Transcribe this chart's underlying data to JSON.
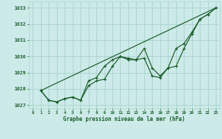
{
  "background_color": "#cceae8",
  "grid_color": "#aad4d0",
  "line_color": "#1a5c2a",
  "text_color": "#1a5c2a",
  "xlabel": "Graphe pression niveau de la mer (hPa)",
  "ylim": [
    1026.8,
    1033.4
  ],
  "xlim": [
    -0.5,
    23.5
  ],
  "yticks": [
    1027,
    1028,
    1029,
    1030,
    1031,
    1032,
    1033
  ],
  "xticks": [
    0,
    1,
    2,
    3,
    4,
    5,
    6,
    7,
    8,
    9,
    10,
    11,
    12,
    13,
    14,
    15,
    16,
    17,
    18,
    19,
    20,
    21,
    22,
    23
  ],
  "series1": [
    1027.9,
    1027.3,
    1027.2,
    1027.4,
    1027.5,
    1027.3,
    1028.2,
    1028.5,
    1028.6,
    1029.4,
    1030.0,
    1029.9,
    1029.8,
    1029.9,
    1028.8,
    1028.7,
    1029.3,
    1029.4,
    1030.5,
    1031.4,
    1032.3,
    1032.6,
    1033.0
  ],
  "series2": [
    1027.9,
    1027.3,
    1027.2,
    1027.4,
    1027.5,
    1027.3,
    1028.5,
    1028.7,
    1029.4,
    1029.8,
    1030.0,
    1029.8,
    1029.8,
    1030.5,
    1029.3,
    1028.8,
    1029.3,
    1030.5,
    1030.8,
    1031.5,
    1032.3,
    1032.6,
    1033.0
  ],
  "trend_x": [
    1,
    23
  ],
  "trend_y": [
    1027.9,
    1033.0
  ],
  "x_start": 1
}
